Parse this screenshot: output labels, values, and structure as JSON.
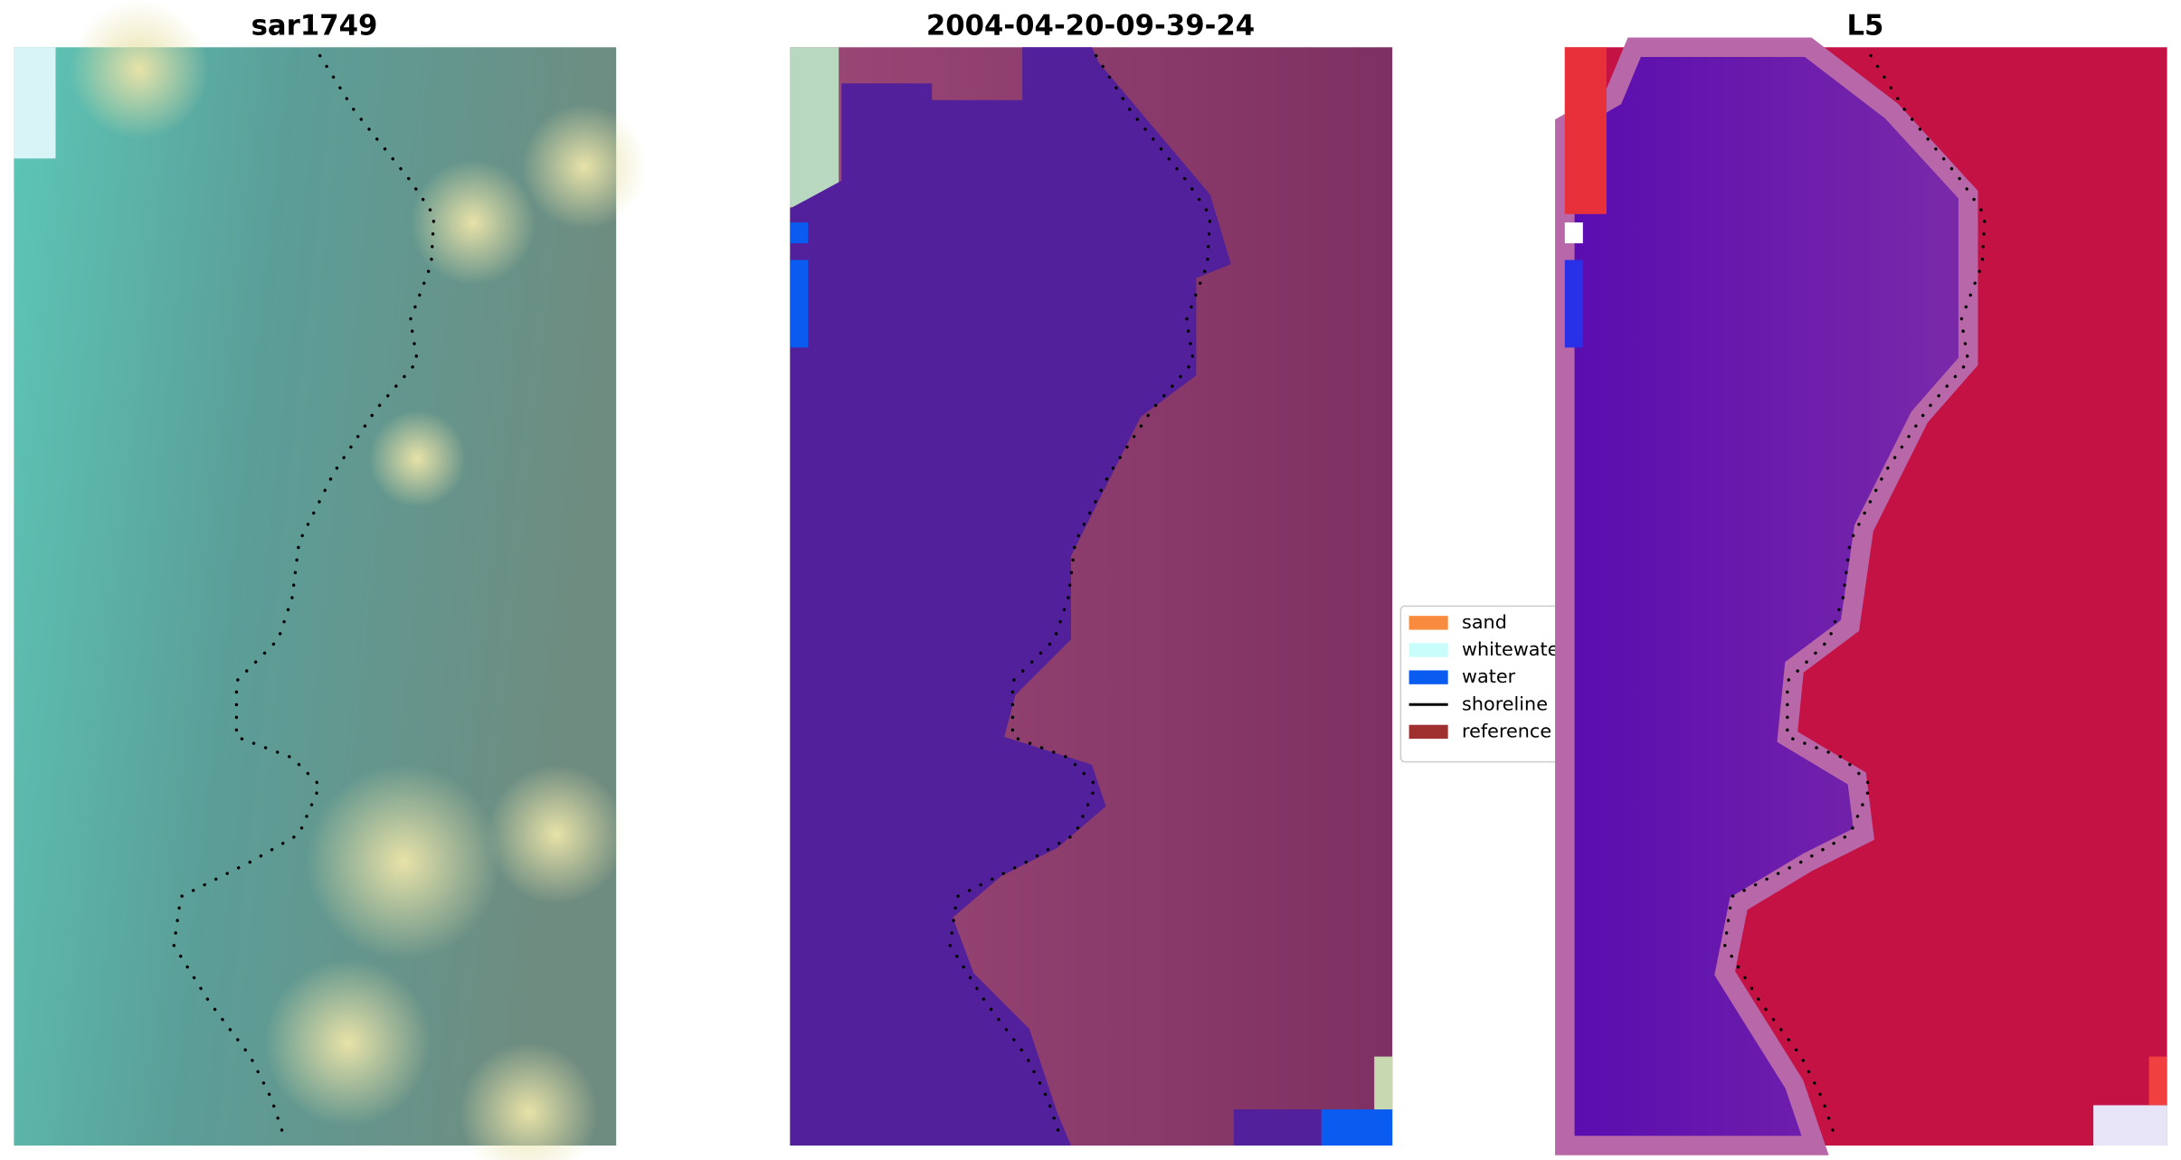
{
  "panels": [
    {
      "title": "sar1749"
    },
    {
      "title": "2004-04-20-09-39-24"
    },
    {
      "title": "L5"
    }
  ],
  "legend": {
    "items": [
      {
        "label": "sand",
        "color": "#f98b3e",
        "kind": "patch"
      },
      {
        "label": "whitewater",
        "color": "#c9fdfb",
        "kind": "patch"
      },
      {
        "label": "water",
        "color": "#0a5cf0",
        "kind": "patch"
      },
      {
        "label": "shoreline",
        "color": "#000000",
        "kind": "line"
      },
      {
        "label": "reference shoreline",
        "color": "#a03030",
        "kind": "patch"
      }
    ]
  }
}
